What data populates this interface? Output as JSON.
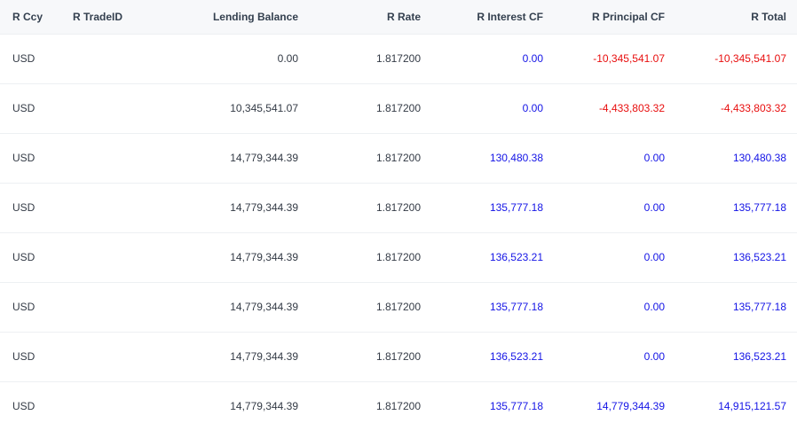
{
  "table": {
    "columns": [
      "R Ccy",
      "R TradeID",
      "Lending Balance",
      "R Rate",
      "R Interest CF",
      "R Principal CF",
      "R Total"
    ],
    "rows": [
      {
        "ccy": "USD",
        "trade_id": "",
        "lending_balance": "0.00",
        "rate": "1.817200",
        "interest_cf": "0.00",
        "principal_cf": "-10,345,541.07",
        "total": "-10,345,541.07"
      },
      {
        "ccy": "USD",
        "trade_id": "",
        "lending_balance": "10,345,541.07",
        "rate": "1.817200",
        "interest_cf": "0.00",
        "principal_cf": "-4,433,803.32",
        "total": "-4,433,803.32"
      },
      {
        "ccy": "USD",
        "trade_id": "",
        "lending_balance": "14,779,344.39",
        "rate": "1.817200",
        "interest_cf": "130,480.38",
        "principal_cf": "0.00",
        "total": "130,480.38"
      },
      {
        "ccy": "USD",
        "trade_id": "",
        "lending_balance": "14,779,344.39",
        "rate": "1.817200",
        "interest_cf": "135,777.18",
        "principal_cf": "0.00",
        "total": "135,777.18"
      },
      {
        "ccy": "USD",
        "trade_id": "",
        "lending_balance": "14,779,344.39",
        "rate": "1.817200",
        "interest_cf": "136,523.21",
        "principal_cf": "0.00",
        "total": "136,523.21"
      },
      {
        "ccy": "USD",
        "trade_id": "",
        "lending_balance": "14,779,344.39",
        "rate": "1.817200",
        "interest_cf": "135,777.18",
        "principal_cf": "0.00",
        "total": "135,777.18"
      },
      {
        "ccy": "USD",
        "trade_id": "",
        "lending_balance": "14,779,344.39",
        "rate": "1.817200",
        "interest_cf": "136,523.21",
        "principal_cf": "0.00",
        "total": "136,523.21"
      },
      {
        "ccy": "USD",
        "trade_id": "",
        "lending_balance": "14,779,344.39",
        "rate": "1.817200",
        "interest_cf": "135,777.18",
        "principal_cf": "14,779,344.39",
        "total": "14,915,121.57"
      }
    ]
  },
  "colors": {
    "positive": "#1414e6",
    "negative": "#e80e0e"
  }
}
